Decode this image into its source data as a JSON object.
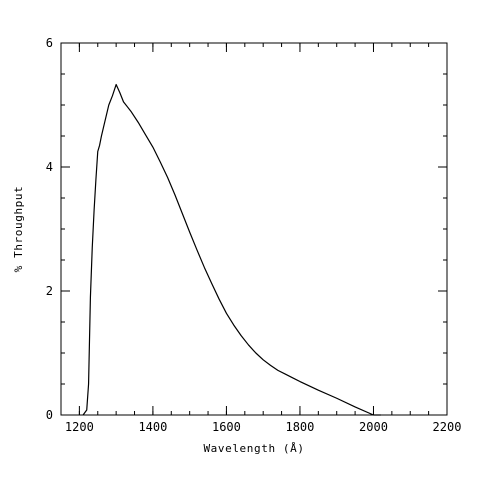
{
  "chart_data": {
    "type": "line",
    "title": "",
    "xlabel": "Wavelength (Å)",
    "ylabel": "% Throughput",
    "xlim": [
      1150,
      2200
    ],
    "ylim": [
      0,
      6
    ],
    "x_ticks": [
      1200,
      1400,
      1600,
      1800,
      2000,
      2200
    ],
    "x_tick_labels": [
      "1200",
      "1400",
      "1600",
      "1800",
      "2000",
      "2200"
    ],
    "y_ticks": [
      0,
      2,
      4,
      6
    ],
    "y_tick_labels": [
      "0",
      "2",
      "4",
      "6"
    ],
    "x_minor_step": 50,
    "y_minor_step": 0.5,
    "grid": false,
    "legend": "none",
    "line_color": "#000000",
    "series": [
      {
        "x": [
          1210,
          1220,
          1225,
          1230,
          1235,
          1240,
          1245,
          1250,
          1255,
          1260,
          1270,
          1280,
          1290,
          1300,
          1310,
          1320,
          1340,
          1360,
          1380,
          1400,
          1420,
          1440,
          1460,
          1480,
          1500,
          1520,
          1540,
          1560,
          1580,
          1600,
          1620,
          1640,
          1660,
          1680,
          1700,
          1720,
          1740,
          1760,
          1780,
          1800,
          1850,
          1900,
          1950,
          2000,
          2020
        ],
        "y": [
          0.0,
          0.08,
          0.5,
          1.9,
          2.7,
          3.3,
          3.8,
          4.25,
          4.35,
          4.5,
          4.75,
          5.0,
          5.15,
          5.33,
          5.2,
          5.05,
          4.9,
          4.72,
          4.52,
          4.32,
          4.08,
          3.83,
          3.55,
          3.25,
          2.95,
          2.66,
          2.38,
          2.12,
          1.87,
          1.64,
          1.45,
          1.28,
          1.13,
          1.0,
          0.89,
          0.8,
          0.72,
          0.66,
          0.6,
          0.54,
          0.4,
          0.27,
          0.13,
          0.0,
          0.0
        ]
      }
    ]
  }
}
